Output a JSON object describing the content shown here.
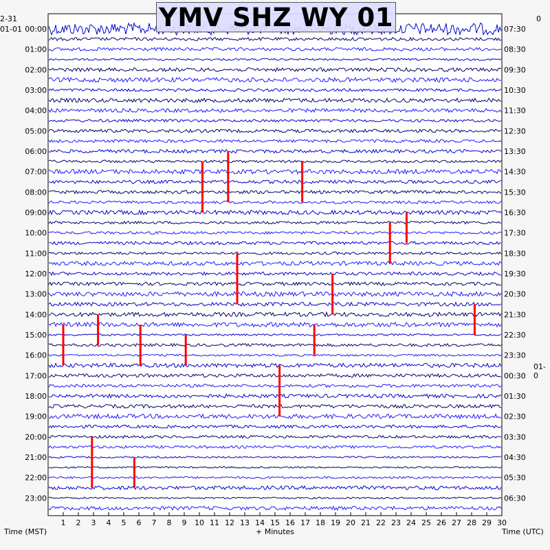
{
  "chart_data": {
    "type": "helicorder",
    "title": "YMV SHZ WY 01",
    "xlabel": "+ Minutes",
    "left_axis_label": "Time (MST)",
    "right_axis_label": "Time (UTC)",
    "left_date_top": "2-31",
    "left_date_row0": "01-01",
    "right_date_change": "01-0",
    "x_ticks": [
      1,
      2,
      3,
      4,
      5,
      6,
      7,
      8,
      9,
      10,
      11,
      12,
      13,
      14,
      15,
      16,
      17,
      18,
      19,
      20,
      21,
      22,
      23,
      24,
      25,
      26,
      27,
      28,
      29,
      30
    ],
    "xlim": [
      0,
      30
    ],
    "rows_per_hour": 2,
    "trace_colors": [
      "#0000cc",
      "#000066",
      "#1a1aff"
    ],
    "event_color": "#ff0000",
    "left_hours": [
      "00:00",
      "01:00",
      "02:00",
      "03:00",
      "04:00",
      "05:00",
      "06:00",
      "07:00",
      "08:00",
      "09:00",
      "10:00",
      "11:00",
      "12:00",
      "13:00",
      "14:00",
      "15:00",
      "16:00",
      "17:00",
      "18:00",
      "19:00",
      "20:00",
      "21:00",
      "22:00",
      "23:00"
    ],
    "right_hours": [
      "07:30",
      "08:30",
      "09:30",
      "10:30",
      "11:30",
      "12:30",
      "13:30",
      "14:30",
      "15:30",
      "16:30",
      "17:30",
      "18:30",
      "19:30",
      "20:30",
      "21:30",
      "22:30",
      "23:30",
      "00:30",
      "01:30",
      "02:30",
      "03:30",
      "04:30",
      "05:30",
      "06:30"
    ],
    "events": [
      {
        "minute": 11.9,
        "row_start": 12,
        "row_end": 17,
        "color": "red"
      },
      {
        "minute": 12.5,
        "row_start": 22,
        "row_end": 27,
        "color": "red"
      },
      {
        "minute": 22.6,
        "row_start": 19,
        "row_end": 23,
        "color": "red"
      },
      {
        "minute": 23.7,
        "row_start": 18,
        "row_end": 21,
        "color": "red"
      },
      {
        "minute": 10.2,
        "row_start": 13,
        "row_end": 18,
        "color": "red"
      },
      {
        "minute": 16.8,
        "row_start": 13,
        "row_end": 17,
        "color": "red"
      },
      {
        "minute": 1.0,
        "row_start": 29,
        "row_end": 33,
        "color": "red"
      },
      {
        "minute": 3.3,
        "row_start": 28,
        "row_end": 31,
        "color": "red"
      },
      {
        "minute": 6.1,
        "row_start": 29,
        "row_end": 33,
        "color": "red"
      },
      {
        "minute": 9.1,
        "row_start": 30,
        "row_end": 33,
        "color": "red"
      },
      {
        "minute": 15.3,
        "row_start": 33,
        "row_end": 38,
        "color": "red"
      },
      {
        "minute": 17.6,
        "row_start": 29,
        "row_end": 32,
        "color": "red"
      },
      {
        "minute": 18.8,
        "row_start": 24,
        "row_end": 28,
        "color": "red"
      },
      {
        "minute": 28.2,
        "row_start": 27,
        "row_end": 30,
        "color": "red"
      },
      {
        "minute": 2.9,
        "row_start": 40,
        "row_end": 45,
        "color": "red"
      },
      {
        "minute": 5.7,
        "row_start": 42,
        "row_end": 45,
        "color": "red"
      }
    ]
  }
}
